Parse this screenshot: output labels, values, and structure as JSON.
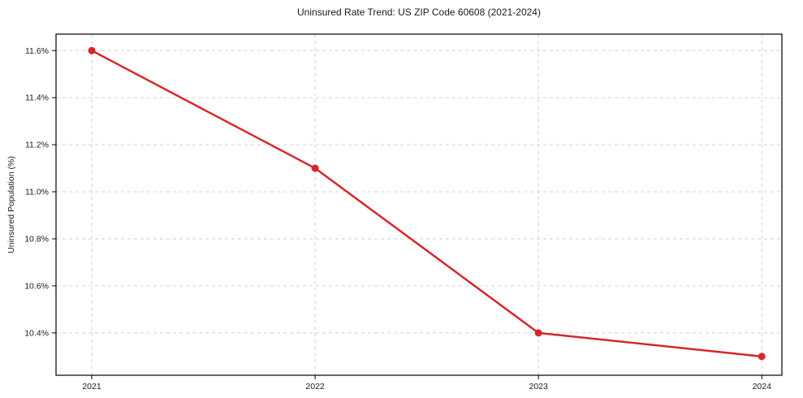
{
  "chart_data": {
    "type": "line",
    "title": "Uninsured Rate Trend: US ZIP Code 60608 (2021-2024)",
    "xlabel": "",
    "ylabel": "Uninsured Population (%)",
    "x": [
      2021,
      2022,
      2023,
      2024
    ],
    "values": [
      11.6,
      11.1,
      10.4,
      10.3
    ],
    "x_tick_labels": [
      "2021",
      "2022",
      "2023",
      "2024"
    ],
    "y_ticks": [
      10.4,
      10.6,
      10.8,
      11.0,
      11.2,
      11.4,
      11.6
    ],
    "y_tick_labels": [
      "10.4%",
      "10.6%",
      "10.8%",
      "11.0%",
      "11.2%",
      "11.4%",
      "11.6%"
    ],
    "ylim": [
      10.22,
      11.67
    ],
    "xlim": [
      2020.84,
      2024.09
    ],
    "grid": true,
    "grid_style": "dashed",
    "legend_position": "none",
    "line_color": "#d62728",
    "marker": "circle",
    "grid_color": "#cccccc",
    "spine_color": "#000000",
    "tick_color": "#000000",
    "text_color": "#1a1a1a",
    "background_color": "#ffffff"
  }
}
